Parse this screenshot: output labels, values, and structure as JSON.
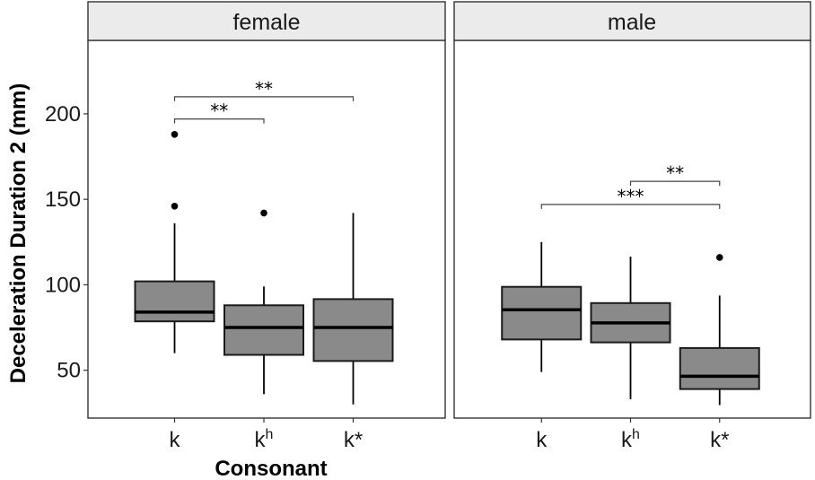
{
  "chart_data": {
    "type": "boxplot",
    "title": "",
    "xlabel": "Consonant",
    "ylabel": "Deceleration Duration 2 (mm)",
    "ylim": [
      22,
      243
    ],
    "yticks": [
      50,
      100,
      150,
      200
    ],
    "categories": [
      "k",
      "kʰ",
      "k*"
    ],
    "category_display": [
      {
        "base": "k",
        "sup": ""
      },
      {
        "base": "k",
        "sup": "h"
      },
      {
        "base": "k*",
        "sup": ""
      }
    ],
    "grid": false,
    "facets": [
      {
        "name": "female",
        "boxes": [
          {
            "category": "k",
            "q1": 78.6,
            "median": 84,
            "q3": 102,
            "whisker_low": 60,
            "whisker_high": 136,
            "outliers": [
              146,
              188
            ]
          },
          {
            "category": "kʰ",
            "q1": 59,
            "median": 75,
            "q3": 88,
            "whisker_low": 36,
            "whisker_high": 99,
            "outliers": [
              142
            ]
          },
          {
            "category": "k*",
            "q1": 55.4,
            "median": 75,
            "q3": 91.6,
            "whisker_low": 30,
            "whisker_high": 142,
            "outliers": []
          }
        ],
        "comparisons": [
          {
            "from": 0,
            "to": 1,
            "y": 197,
            "label": "**"
          },
          {
            "from": 0,
            "to": 2,
            "y": 210,
            "label": "**"
          }
        ]
      },
      {
        "name": "male",
        "boxes": [
          {
            "category": "k",
            "q1": 68,
            "median": 85.4,
            "q3": 98.8,
            "whisker_low": 49,
            "whisker_high": 125,
            "outliers": []
          },
          {
            "category": "kʰ",
            "q1": 66.3,
            "median": 77.7,
            "q3": 89.3,
            "whisker_low": 33,
            "whisker_high": 116.5,
            "outliers": []
          },
          {
            "category": "k*",
            "q1": 39,
            "median": 46.5,
            "q3": 63,
            "whisker_low": 29.6,
            "whisker_high": 93.7,
            "outliers": [
              116
            ]
          }
        ],
        "comparisons": [
          {
            "from": 1,
            "to": 2,
            "y": 160.5,
            "label": "**"
          },
          {
            "from": 0,
            "to": 2,
            "y": 147,
            "label": "***"
          }
        ]
      }
    ]
  }
}
